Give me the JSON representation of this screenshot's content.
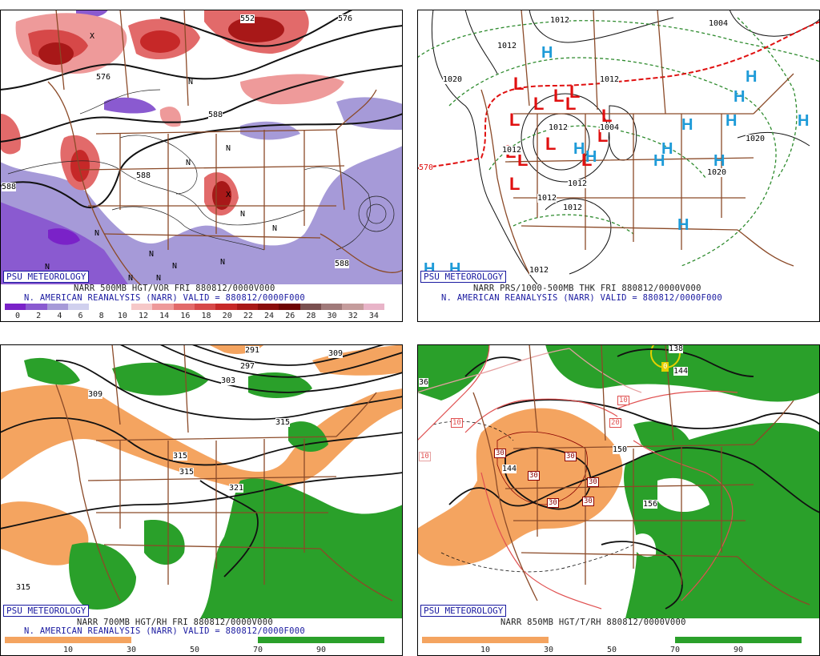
{
  "branding": "PSU METEOROLOGY",
  "panels": [
    {
      "caption1": "NARR 500MB HGT/VOR FRI 880812/0000V000",
      "caption2": "N. AMERICAN REANALYSIS (NARR) VALID = 880812/0000F000",
      "scale_colors": [
        "#7a22c8",
        "#8a5ad0",
        "#a69ad8",
        "#d0d0ee",
        "#ffffff",
        "#ffffff",
        "#f6c8c8",
        "#ee9a9a",
        "#e26a6a",
        "#d64848",
        "#c62828",
        "#a81818",
        "#8a0c0c",
        "#6e0404",
        "#7a5050",
        "#a07a7a",
        "#c49c9c",
        "#e8b4c8"
      ],
      "scale_labels": [
        "0",
        "2",
        "4",
        "6",
        "8",
        "10",
        "12",
        "14",
        "16",
        "18",
        "20",
        "22",
        "24",
        "26",
        "28",
        "30",
        "32",
        "34"
      ],
      "contour_labels": [
        "552",
        "576",
        "576",
        "588",
        "588",
        "588",
        "588"
      ],
      "symbols": [
        "N",
        "N",
        "N",
        "N",
        "N",
        "N",
        "N",
        "N",
        "N",
        "N",
        "N",
        "N",
        "X",
        "X"
      ]
    },
    {
      "caption1": "NARR PRS/1000-500MB THK FRI 880812/0000V000",
      "caption2": "N. AMERICAN REANALYSIS (NARR) VALID = 880812/0000F000",
      "contour_labels": [
        "1012",
        "1012",
        "1004",
        "1020",
        "1012",
        "1004",
        "1012",
        "1012",
        "1012",
        "1012",
        "1012",
        "1020",
        "1020",
        "1012",
        "570"
      ],
      "low_symbol": "L",
      "high_symbol": "H"
    },
    {
      "caption1": "NARR 700MB HGT/RH FRI 880812/0000V000",
      "caption2": "N. AMERICAN REANALYSIS (NARR) VALID = 880812/0000F000",
      "scale_colors": [
        "#f4a460",
        "#f4a460",
        "#ffffff",
        "#ffffff",
        "#2aa02a",
        "#2aa02a"
      ],
      "scale_labels": [
        "10",
        "30",
        "50",
        "70",
        "90"
      ],
      "contour_labels": [
        "291",
        "297",
        "303",
        "309",
        "309",
        "315",
        "315",
        "315",
        "321",
        "315"
      ]
    },
    {
      "caption1": "NARR 850MB HGT/T/RH 880812/0000V000",
      "scale_colors": [
        "#f4a460",
        "#f4a460",
        "#ffffff",
        "#ffffff",
        "#2aa02a",
        "#2aa02a"
      ],
      "scale_labels": [
        "10",
        "30",
        "50",
        "70",
        "90"
      ],
      "contour_labels": [
        "138",
        "144",
        "150",
        "156",
        "144",
        "36"
      ],
      "temp_labels": [
        "0",
        "10",
        "10",
        "10",
        "20",
        "30",
        "30",
        "30",
        "30",
        "30",
        "30"
      ]
    }
  ]
}
